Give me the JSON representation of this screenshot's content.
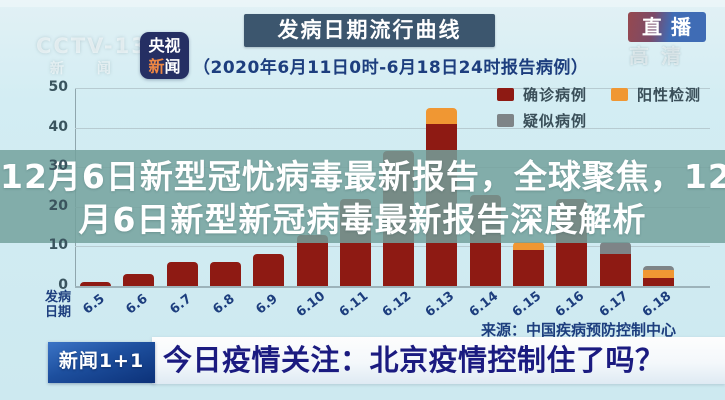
{
  "broadcast": {
    "channel_watermark_line1": "CCTV-13",
    "channel_watermark_line2": "新 闻",
    "app_badge_line1": "央视",
    "app_badge_line2_hl": "新",
    "app_badge_line2_rest": "闻",
    "live_badge": "直播",
    "hd_watermark": "高清"
  },
  "chart": {
    "title": "发病日期流行曲线",
    "subtitle": "（2020年6月11日0时-6月18日24时报告病例）",
    "source": "来源：中国疾病预防控制中心",
    "x_caption_line1": "发病",
    "x_caption_line2": "日期"
  },
  "chart_data": {
    "type": "bar",
    "stacked": true,
    "title": "发病日期流行曲线",
    "subtitle": "（2020年6月11日0时-6月18日24时报告病例）",
    "source": "来源：中国疾病预防控制中心",
    "categories": [
      "6.5",
      "6.6",
      "6.7",
      "6.8",
      "6.9",
      "6.10",
      "6.11",
      "6.12",
      "6.13",
      "6.14",
      "6.15",
      "6.16",
      "6.17",
      "6.18"
    ],
    "series": [
      {
        "name": "确诊病例",
        "color": "#8e1a13",
        "values": [
          1,
          3,
          6,
          6,
          8,
          13,
          22,
          34,
          41,
          23,
          9,
          22,
          8,
          2
        ]
      },
      {
        "name": "阳性检测",
        "color": "#f09733",
        "values": [
          0,
          0,
          0,
          0,
          0,
          0,
          0,
          0,
          4,
          0,
          2,
          0,
          0,
          2
        ]
      },
      {
        "name": "疑似病例",
        "color": "#7e8487",
        "values": [
          0,
          0,
          0,
          0,
          0,
          0,
          0,
          0,
          0,
          0,
          0,
          0,
          3,
          1
        ]
      }
    ],
    "yticks": [
      0,
      10,
      20,
      30,
      40,
      50
    ],
    "ylim": [
      0,
      50
    ],
    "xlabel": "发病日期",
    "ylabel": "",
    "grid": true,
    "legend_position": "top-right",
    "note_values_partially_estimated": "bars 6.10-6.12, 6.14, 6.16 tops hidden behind headline overlay"
  },
  "overlay": {
    "line1": "12月6日新型冠忧病毒最新报告，全球聚焦，12",
    "line2": "月6日新型新冠病毒最新报告深度解析"
  },
  "ticker": {
    "logo": "新闻1+1",
    "text": "今日疫情关注：北京疫情控制住了吗？"
  }
}
